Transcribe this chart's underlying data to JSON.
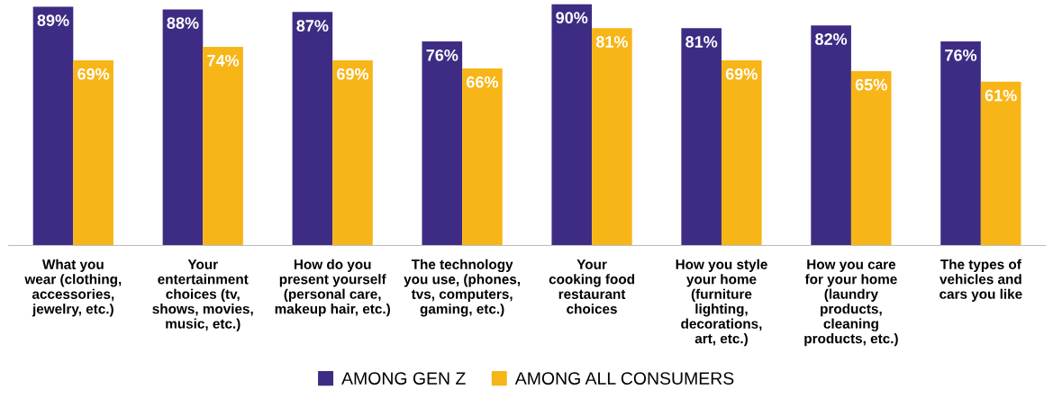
{
  "chart_data": {
    "type": "bar",
    "categories": [
      "What you\nwear (clothing,\naccessories,\njewelry, etc.)",
      "Your\nentertainment\nchoices (tv,\nshows, movies,\nmusic, etc.)",
      "How do you\npresent yourself\n(personal care,\nmakeup hair, etc.)",
      "The technology\nyou use, (phones,\ntvs, computers,\ngaming, etc.)",
      "Your\ncooking food\nrestaurant\nchoices",
      "How you style\nyour home\n(furniture\nlighting,\ndecorations,\nart, etc.)",
      "How you care\nfor your home\n(laundry\nproducts,\ncleaning\nproducts, etc.)",
      "The types of\nvehicles and\ncars you like"
    ],
    "series": [
      {
        "name": "AMONG GEN Z",
        "color": "#3e2c84",
        "values": [
          89,
          88,
          87,
          76,
          90,
          81,
          82,
          76
        ],
        "value_labels": [
          "89%",
          "88%",
          "87%",
          "76%",
          "90%",
          "81%",
          "82%",
          "76%"
        ]
      },
      {
        "name": "AMONG ALL CONSUMERS",
        "color": "#f8b517",
        "values": [
          69,
          74,
          69,
          66,
          81,
          69,
          65,
          61
        ],
        "value_labels": [
          "69%",
          "74%",
          "69%",
          "66%",
          "81%",
          "69%",
          "65%",
          "61%"
        ]
      }
    ],
    "legend": "bottom",
    "grid": false
  }
}
